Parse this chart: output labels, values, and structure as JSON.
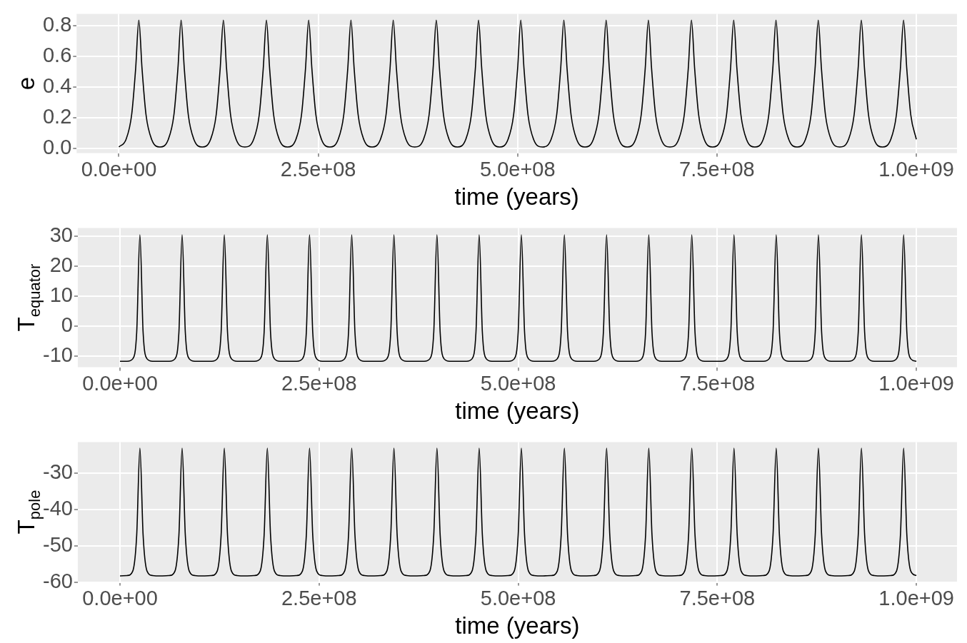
{
  "chart_data": [
    {
      "type": "line",
      "xlabel": "time (years)",
      "ylabel": "e",
      "grid": true,
      "marker": "none",
      "line_style": "solid",
      "legend": false,
      "xlim": [
        -53000000.0,
        1051000000.0
      ],
      "ylim": [
        -0.03,
        0.876
      ],
      "xticks": [
        {
          "value": 0,
          "label": "0.0e+00"
        },
        {
          "value": 250000000.0,
          "label": "2.5e+08"
        },
        {
          "value": 500000000.0,
          "label": "5.0e+08"
        },
        {
          "value": 750000000.0,
          "label": "7.5e+08"
        },
        {
          "value": 1000000000.0,
          "label": "1.0e+09"
        }
      ],
      "yticks": [
        {
          "value": 0,
          "label": "0.0"
        },
        {
          "value": 0.2,
          "label": "0.2"
        },
        {
          "value": 0.4,
          "label": "0.4"
        },
        {
          "value": 0.6,
          "label": "0.6"
        },
        {
          "value": 0.8,
          "label": "0.8"
        }
      ],
      "x": [
        0,
        9000000.0,
        16000000.0,
        21000000.0,
        25000000.0,
        29000000.0,
        34000000.0,
        41000000.0,
        51500000.0,
        62000000.0,
        69000000.0,
        74000000.0,
        78000000.0,
        82000000.0,
        87000000.0,
        94000000.0,
        104500000.0,
        115000000.0,
        122000000.0,
        127000000.0,
        131000000.0,
        135000000.0,
        140000000.0,
        147000000.0,
        158000000.0,
        169000000.0,
        176000000.0,
        181000000.0,
        185000000.0,
        189000000.0,
        194000000.0,
        201000000.0,
        211500000.0,
        222000000.0,
        229000000.0,
        234000000.0,
        238000000.0,
        242000000.0,
        247000000.0,
        254000000.0,
        264500000.0,
        275000000.0,
        282000000.0,
        287000000.0,
        291000000.0,
        295000000.0,
        300000000.0,
        307000000.0,
        317500000.0,
        328000000.0,
        335000000.0,
        340000000.0,
        344000000.0,
        348000000.0,
        353000000.0,
        360000000.0,
        371000000.0,
        382000000.0,
        389000000.0,
        394000000.0,
        398000000.0,
        402000000.0,
        407000000.0,
        414000000.0,
        424500000.0,
        435000000.0,
        442000000.0,
        447000000.0,
        451000000.0,
        455000000.0,
        460000000.0,
        467000000.0,
        477500000.0,
        488000000.0,
        495000000.0,
        500000000.0,
        504000000.0,
        508000000.0,
        513000000.0,
        520000000.0,
        531000000.0,
        542000000.0,
        549000000.0,
        554000000.0,
        558000000.0,
        562000000.0,
        567000000.0,
        574000000.0,
        584500000.0,
        595000000.0,
        602000000.0,
        607000000.0,
        611000000.0,
        615000000.0,
        620000000.0,
        627000000.0,
        637500000.0,
        648000000.0,
        655000000.0,
        660000000.0,
        664000000.0,
        668000000.0,
        673000000.0,
        680000000.0,
        691000000.0,
        702000000.0,
        709000000.0,
        714000000.0,
        718000000.0,
        722000000.0,
        727000000.0,
        734000000.0,
        744500000.0,
        755000000.0,
        762000000.0,
        767000000.0,
        771000000.0,
        775000000.0,
        780000000.0,
        787000000.0,
        797500000.0,
        808000000.0,
        815000000.0,
        820000000.0,
        824000000.0,
        828000000.0,
        833000000.0,
        840000000.0,
        850500000.0,
        861000000.0,
        868000000.0,
        873000000.0,
        877000000.0,
        881000000.0,
        886000000.0,
        893000000.0,
        904000000.0,
        915000000.0,
        922000000.0,
        927000000.0,
        931000000.0,
        935000000.0,
        940000000.0,
        947000000.0,
        957500000.0,
        968000000.0,
        975000000.0,
        980000000.0,
        984000000.0,
        988000000.0,
        993000000.0,
        1000000000.0
      ],
      "series": [
        {
          "color": "#000000",
          "values": [
            0.01,
            0.06,
            0.22,
            0.52,
            0.835,
            0.52,
            0.22,
            0.06,
            0.01,
            0.06,
            0.22,
            0.52,
            0.835,
            0.52,
            0.22,
            0.06,
            0.01,
            0.06,
            0.22,
            0.52,
            0.835,
            0.52,
            0.22,
            0.06,
            0.01,
            0.06,
            0.22,
            0.52,
            0.835,
            0.52,
            0.22,
            0.06,
            0.01,
            0.06,
            0.22,
            0.52,
            0.835,
            0.52,
            0.22,
            0.06,
            0.01,
            0.06,
            0.22,
            0.52,
            0.835,
            0.52,
            0.22,
            0.06,
            0.01,
            0.06,
            0.22,
            0.52,
            0.835,
            0.52,
            0.22,
            0.06,
            0.01,
            0.06,
            0.22,
            0.52,
            0.835,
            0.52,
            0.22,
            0.06,
            0.01,
            0.06,
            0.22,
            0.52,
            0.835,
            0.52,
            0.22,
            0.06,
            0.01,
            0.06,
            0.22,
            0.52,
            0.835,
            0.52,
            0.22,
            0.06,
            0.01,
            0.06,
            0.22,
            0.52,
            0.835,
            0.52,
            0.22,
            0.06,
            0.01,
            0.06,
            0.22,
            0.52,
            0.835,
            0.52,
            0.22,
            0.06,
            0.01,
            0.06,
            0.22,
            0.52,
            0.835,
            0.52,
            0.22,
            0.06,
            0.01,
            0.06,
            0.22,
            0.52,
            0.835,
            0.52,
            0.22,
            0.06,
            0.01,
            0.06,
            0.22,
            0.52,
            0.835,
            0.52,
            0.22,
            0.06,
            0.01,
            0.06,
            0.22,
            0.52,
            0.835,
            0.52,
            0.22,
            0.06,
            0.01,
            0.06,
            0.22,
            0.52,
            0.835,
            0.52,
            0.22,
            0.06,
            0.01,
            0.06,
            0.22,
            0.52,
            0.835,
            0.52,
            0.22,
            0.06,
            0.01,
            0.06,
            0.22,
            0.52,
            0.835,
            0.52,
            0.22,
            0.06
          ]
        }
      ]
    },
    {
      "type": "line",
      "xlabel": "time (years)",
      "ylabel": "T$_{equator}$",
      "grid": true,
      "marker": "none",
      "line_style": "solid",
      "legend": false,
      "xlim": [
        -53000000.0,
        1051000000.0
      ],
      "ylim": [
        -13.8,
        32.8
      ],
      "xticks": [
        {
          "value": 0,
          "label": "0.0e+00"
        },
        {
          "value": 250000000.0,
          "label": "2.5e+08"
        },
        {
          "value": 500000000.0,
          "label": "5.0e+08"
        },
        {
          "value": 750000000.0,
          "label": "7.5e+08"
        },
        {
          "value": 1000000000.0,
          "label": "1.0e+09"
        }
      ],
      "yticks": [
        -10,
        0,
        10,
        20,
        30
      ],
      "x": [
        0,
        9000000.0,
        16000000.0,
        21000000.0,
        25000000.0,
        29000000.0,
        34000000.0,
        41000000.0,
        51500000.0,
        62000000.0,
        69000000.0,
        74000000.0,
        78000000.0,
        82000000.0,
        87000000.0,
        94000000.0,
        104500000.0,
        115000000.0,
        122000000.0,
        127000000.0,
        131000000.0,
        135000000.0,
        140000000.0,
        147000000.0,
        158000000.0,
        169000000.0,
        176000000.0,
        181000000.0,
        185000000.0,
        189000000.0,
        194000000.0,
        201000000.0,
        211500000.0,
        222000000.0,
        229000000.0,
        234000000.0,
        238000000.0,
        242000000.0,
        247000000.0,
        254000000.0,
        264500000.0,
        275000000.0,
        282000000.0,
        287000000.0,
        291000000.0,
        295000000.0,
        300000000.0,
        307000000.0,
        317500000.0,
        328000000.0,
        335000000.0,
        340000000.0,
        344000000.0,
        348000000.0,
        353000000.0,
        360000000.0,
        371000000.0,
        382000000.0,
        389000000.0,
        394000000.0,
        398000000.0,
        402000000.0,
        407000000.0,
        414000000.0,
        424500000.0,
        435000000.0,
        442000000.0,
        447000000.0,
        451000000.0,
        455000000.0,
        460000000.0,
        467000000.0,
        477500000.0,
        488000000.0,
        495000000.0,
        500000000.0,
        504000000.0,
        508000000.0,
        513000000.0,
        520000000.0,
        531000000.0,
        542000000.0,
        549000000.0,
        554000000.0,
        558000000.0,
        562000000.0,
        567000000.0,
        574000000.0,
        584500000.0,
        595000000.0,
        602000000.0,
        607000000.0,
        611000000.0,
        615000000.0,
        620000000.0,
        627000000.0,
        637500000.0,
        648000000.0,
        655000000.0,
        660000000.0,
        664000000.0,
        668000000.0,
        673000000.0,
        680000000.0,
        691000000.0,
        702000000.0,
        709000000.0,
        714000000.0,
        718000000.0,
        722000000.0,
        727000000.0,
        734000000.0,
        744500000.0,
        755000000.0,
        762000000.0,
        767000000.0,
        771000000.0,
        775000000.0,
        780000000.0,
        787000000.0,
        797500000.0,
        808000000.0,
        815000000.0,
        820000000.0,
        824000000.0,
        828000000.0,
        833000000.0,
        840000000.0,
        850500000.0,
        861000000.0,
        868000000.0,
        873000000.0,
        877000000.0,
        881000000.0,
        886000000.0,
        893000000.0,
        904000000.0,
        915000000.0,
        922000000.0,
        927000000.0,
        931000000.0,
        935000000.0,
        940000000.0,
        947000000.0,
        957500000.0,
        968000000.0,
        975000000.0,
        980000000.0,
        984000000.0,
        988000000.0,
        993000000.0,
        1000000000.0
      ],
      "series": [
        {
          "color": "#000000",
          "values": [
            -11.8,
            -11.8,
            -11,
            -2,
            30.5,
            -2,
            -11,
            -11.8,
            -11.8,
            -11.8,
            -11,
            -2,
            30.5,
            -2,
            -11,
            -11.8,
            -11.8,
            -11.8,
            -11,
            -2,
            30.5,
            -2,
            -11,
            -11.8,
            -11.8,
            -11.8,
            -11,
            -2,
            30.5,
            -2,
            -11,
            -11.8,
            -11.8,
            -11.8,
            -11,
            -2,
            30.5,
            -2,
            -11,
            -11.8,
            -11.8,
            -11.8,
            -11,
            -2,
            30.5,
            -2,
            -11,
            -11.8,
            -11.8,
            -11.8,
            -11,
            -2,
            30.5,
            -2,
            -11,
            -11.8,
            -11.8,
            -11.8,
            -11,
            -2,
            30.5,
            -2,
            -11,
            -11.8,
            -11.8,
            -11.8,
            -11,
            -2,
            30.5,
            -2,
            -11,
            -11.8,
            -11.8,
            -11.8,
            -11,
            -2,
            30.5,
            -2,
            -11,
            -11.8,
            -11.8,
            -11.8,
            -11,
            -2,
            30.5,
            -2,
            -11,
            -11.8,
            -11.8,
            -11.8,
            -11,
            -2,
            30.5,
            -2,
            -11,
            -11.8,
            -11.8,
            -11.8,
            -11,
            -2,
            30.5,
            -2,
            -11,
            -11.8,
            -11.8,
            -11.8,
            -11,
            -2,
            30.5,
            -2,
            -11,
            -11.8,
            -11.8,
            -11.8,
            -11,
            -2,
            30.5,
            -2,
            -11,
            -11.8,
            -11.8,
            -11.8,
            -11,
            -2,
            30.5,
            -2,
            -11,
            -11.8,
            -11.8,
            -11.8,
            -11,
            -2,
            30.5,
            -2,
            -11,
            -11.8,
            -11.8,
            -11.8,
            -11,
            -2,
            30.5,
            -2,
            -11,
            -11.8,
            -11.8,
            -11.8,
            -11,
            -2,
            30.5,
            -2,
            -11,
            -11.8
          ]
        }
      ]
    },
    {
      "type": "line",
      "xlabel": "time (years)",
      "ylabel": "T$_{pole}$",
      "grid": true,
      "marker": "none",
      "line_style": "solid",
      "legend": false,
      "xlim": [
        -53000000.0,
        1051000000.0
      ],
      "ylim": [
        -60,
        -21.5
      ],
      "xticks": [
        {
          "value": 0,
          "label": "0.0e+00"
        },
        {
          "value": 250000000.0,
          "label": "2.5e+08"
        },
        {
          "value": 500000000.0,
          "label": "5.0e+08"
        },
        {
          "value": 750000000.0,
          "label": "7.5e+08"
        },
        {
          "value": 1000000000.0,
          "label": "1.0e+09"
        }
      ],
      "yticks": [
        -60,
        -50,
        -40,
        -30
      ],
      "x": [
        0,
        9000000.0,
        16000000.0,
        21000000.0,
        25000000.0,
        29000000.0,
        34000000.0,
        41000000.0,
        51500000.0,
        62000000.0,
        69000000.0,
        74000000.0,
        78000000.0,
        82000000.0,
        87000000.0,
        94000000.0,
        104500000.0,
        115000000.0,
        122000000.0,
        127000000.0,
        131000000.0,
        135000000.0,
        140000000.0,
        147000000.0,
        158000000.0,
        169000000.0,
        176000000.0,
        181000000.0,
        185000000.0,
        189000000.0,
        194000000.0,
        201000000.0,
        211500000.0,
        222000000.0,
        229000000.0,
        234000000.0,
        238000000.0,
        242000000.0,
        247000000.0,
        254000000.0,
        264500000.0,
        275000000.0,
        282000000.0,
        287000000.0,
        291000000.0,
        295000000.0,
        300000000.0,
        307000000.0,
        317500000.0,
        328000000.0,
        335000000.0,
        340000000.0,
        344000000.0,
        348000000.0,
        353000000.0,
        360000000.0,
        371000000.0,
        382000000.0,
        389000000.0,
        394000000.0,
        398000000.0,
        402000000.0,
        407000000.0,
        414000000.0,
        424500000.0,
        435000000.0,
        442000000.0,
        447000000.0,
        451000000.0,
        455000000.0,
        460000000.0,
        467000000.0,
        477500000.0,
        488000000.0,
        495000000.0,
        500000000.0,
        504000000.0,
        508000000.0,
        513000000.0,
        520000000.0,
        531000000.0,
        542000000.0,
        549000000.0,
        554000000.0,
        558000000.0,
        562000000.0,
        567000000.0,
        574000000.0,
        584500000.0,
        595000000.0,
        602000000.0,
        607000000.0,
        611000000.0,
        615000000.0,
        620000000.0,
        627000000.0,
        637500000.0,
        648000000.0,
        655000000.0,
        660000000.0,
        664000000.0,
        668000000.0,
        673000000.0,
        680000000.0,
        691000000.0,
        702000000.0,
        709000000.0,
        714000000.0,
        718000000.0,
        722000000.0,
        727000000.0,
        734000000.0,
        744500000.0,
        755000000.0,
        762000000.0,
        767000000.0,
        771000000.0,
        775000000.0,
        780000000.0,
        787000000.0,
        797500000.0,
        808000000.0,
        815000000.0,
        820000000.0,
        824000000.0,
        828000000.0,
        833000000.0,
        840000000.0,
        850500000.0,
        861000000.0,
        868000000.0,
        873000000.0,
        877000000.0,
        881000000.0,
        886000000.0,
        893000000.0,
        904000000.0,
        915000000.0,
        922000000.0,
        927000000.0,
        931000000.0,
        935000000.0,
        940000000.0,
        947000000.0,
        957500000.0,
        968000000.0,
        975000000.0,
        980000000.0,
        984000000.0,
        988000000.0,
        993000000.0,
        1000000000.0
      ],
      "series": [
        {
          "color": "#000000",
          "values": [
            -58.3,
            -58.2,
            -57,
            -47,
            -23.2,
            -47,
            -57,
            -58.2,
            -58.3,
            -58.2,
            -57,
            -47,
            -23.2,
            -47,
            -57,
            -58.2,
            -58.3,
            -58.2,
            -57,
            -47,
            -23.2,
            -47,
            -57,
            -58.2,
            -58.3,
            -58.2,
            -57,
            -47,
            -23.2,
            -47,
            -57,
            -58.2,
            -58.3,
            -58.2,
            -57,
            -47,
            -23.2,
            -47,
            -57,
            -58.2,
            -58.3,
            -58.2,
            -57,
            -47,
            -23.2,
            -47,
            -57,
            -58.2,
            -58.3,
            -58.2,
            -57,
            -47,
            -23.2,
            -47,
            -57,
            -58.2,
            -58.3,
            -58.2,
            -57,
            -47,
            -23.2,
            -47,
            -57,
            -58.2,
            -58.3,
            -58.2,
            -57,
            -47,
            -23.2,
            -47,
            -57,
            -58.2,
            -58.3,
            -58.2,
            -57,
            -47,
            -23.2,
            -47,
            -57,
            -58.2,
            -58.3,
            -58.2,
            -57,
            -47,
            -23.2,
            -47,
            -57,
            -58.2,
            -58.3,
            -58.2,
            -57,
            -47,
            -23.2,
            -47,
            -57,
            -58.2,
            -58.3,
            -58.2,
            -57,
            -47,
            -23.2,
            -47,
            -57,
            -58.2,
            -58.3,
            -58.2,
            -57,
            -47,
            -23.2,
            -47,
            -57,
            -58.2,
            -58.3,
            -58.2,
            -57,
            -47,
            -23.2,
            -47,
            -57,
            -58.2,
            -58.3,
            -58.2,
            -57,
            -47,
            -23.2,
            -47,
            -57,
            -58.2,
            -58.3,
            -58.2,
            -57,
            -47,
            -23.2,
            -47,
            -57,
            -58.2,
            -58.3,
            -58.2,
            -57,
            -47,
            -23.2,
            -47,
            -57,
            -58.2,
            -58.3,
            -58.2,
            -57,
            -47,
            -23.2,
            -47,
            -57,
            -58.2
          ]
        }
      ]
    }
  ]
}
